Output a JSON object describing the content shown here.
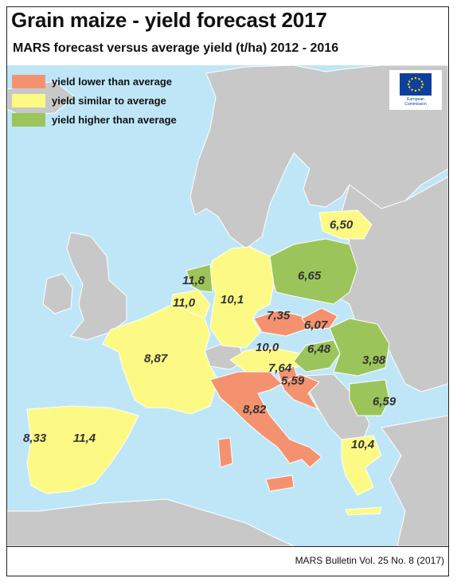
{
  "title": "Grain maize - yield forecast 2017",
  "subtitle": "MARS forecast versus average yield (t/ha) 2012 - 2016",
  "colors": {
    "lower": "#f4926f",
    "similar": "#fcfa84",
    "higher": "#9bc55b",
    "non_eu": "#c8c8c8",
    "sea": "#bfe6f7",
    "border": "#ffffff",
    "eu_blue": "#0f3f9d",
    "eu_star": "#ffdd00"
  },
  "legend": [
    {
      "label": "yield lower than average",
      "color": "#f4926f"
    },
    {
      "label": "yield similar to average",
      "color": "#fcfa84"
    },
    {
      "label": "yield higher than average",
      "color": "#9bc55b"
    }
  ],
  "logo": {
    "caption_line1": "European",
    "caption_line2": "Commission"
  },
  "values": {
    "lithuania": "6,50",
    "poland": "6,65",
    "netherlands": "11,8",
    "belgium": "11,0",
    "germany": "10,1",
    "czechia": "7,35",
    "slovakia": "6,07",
    "france": "8,87",
    "austria": "10,0",
    "hungary": "6,48",
    "romania": "3,98",
    "slovenia": "7,64",
    "croatia": "5,59",
    "italy": "8,82",
    "bulgaria": "6,59",
    "portugal": "8,33",
    "spain": "11,4",
    "greece": "10,4"
  },
  "footer": "MARS Bulletin Vol. 25 No. 8 (2017)"
}
